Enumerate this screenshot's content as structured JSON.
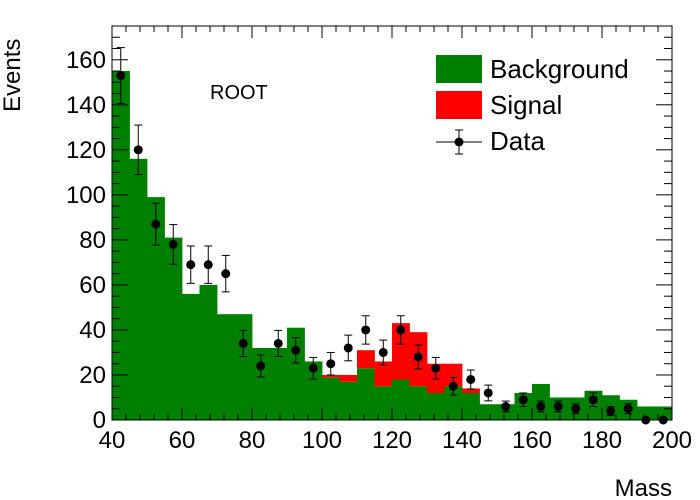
{
  "chart_data": {
    "type": "bar",
    "subtype": "stacked-histogram",
    "annotation": "ROOT",
    "xlabel": "Mass",
    "ylabel": "Events",
    "xlim": [
      40,
      200
    ],
    "ylim": [
      0,
      175
    ],
    "x_ticks": [
      40,
      60,
      80,
      100,
      120,
      140,
      160,
      180,
      200
    ],
    "y_ticks": [
      0,
      20,
      40,
      60,
      80,
      100,
      120,
      140,
      160
    ],
    "grid": false,
    "legend_position": "top-right",
    "bin_edges": [
      40,
      45,
      50,
      55,
      60,
      65,
      70,
      75,
      80,
      85,
      90,
      95,
      100,
      105,
      110,
      115,
      120,
      125,
      130,
      135,
      140,
      145,
      150,
      155,
      160,
      165,
      170,
      175,
      180,
      185,
      190,
      195,
      200
    ],
    "series": [
      {
        "name": "Background",
        "color": "#008000",
        "values": [
          155,
          116,
          99,
          81,
          56,
          60,
          47,
          47,
          32,
          32,
          41,
          26,
          19,
          17,
          23,
          15,
          18,
          15,
          12,
          15,
          12,
          7,
          7,
          12,
          16,
          10,
          10,
          13,
          11,
          9,
          6,
          6
        ]
      },
      {
        "name": "Signal",
        "color": "#ff0000",
        "values": [
          0,
          0,
          0,
          0,
          0,
          0,
          0,
          0,
          0,
          0,
          0,
          0,
          1,
          3,
          8,
          11,
          25,
          24,
          13,
          10,
          2,
          0,
          0,
          0,
          0,
          0,
          0,
          0,
          0,
          0,
          0,
          0
        ]
      }
    ],
    "data_points": {
      "name": "Data",
      "x": [
        42.5,
        47.5,
        52.5,
        57.5,
        62.5,
        67.5,
        72.5,
        77.5,
        82.5,
        87.5,
        92.5,
        97.5,
        102.5,
        107.5,
        112.5,
        117.5,
        122.5,
        127.5,
        132.5,
        137.5,
        142.5,
        147.5,
        152.5,
        157.5,
        162.5,
        167.5,
        172.5,
        177.5,
        182.5,
        187.5,
        192.5,
        197.5
      ],
      "y": [
        153,
        120,
        87,
        78,
        69,
        69,
        65,
        34,
        24,
        34,
        31,
        23,
        25,
        32,
        40,
        30,
        40,
        28,
        23,
        15,
        18,
        12,
        6,
        9,
        6,
        6,
        5,
        9,
        4,
        5,
        0,
        0
      ],
      "yerr": [
        12.4,
        11,
        9.3,
        8.8,
        8.3,
        8.3,
        8.1,
        5.8,
        4.9,
        5.8,
        5.6,
        4.8,
        5,
        5.7,
        6.3,
        5.5,
        6.3,
        5.3,
        4.8,
        3.9,
        4.2,
        3.5,
        2.4,
        3,
        2.4,
        2.4,
        2.2,
        3,
        2,
        2.2,
        0,
        0
      ],
      "color": "#000000"
    }
  }
}
